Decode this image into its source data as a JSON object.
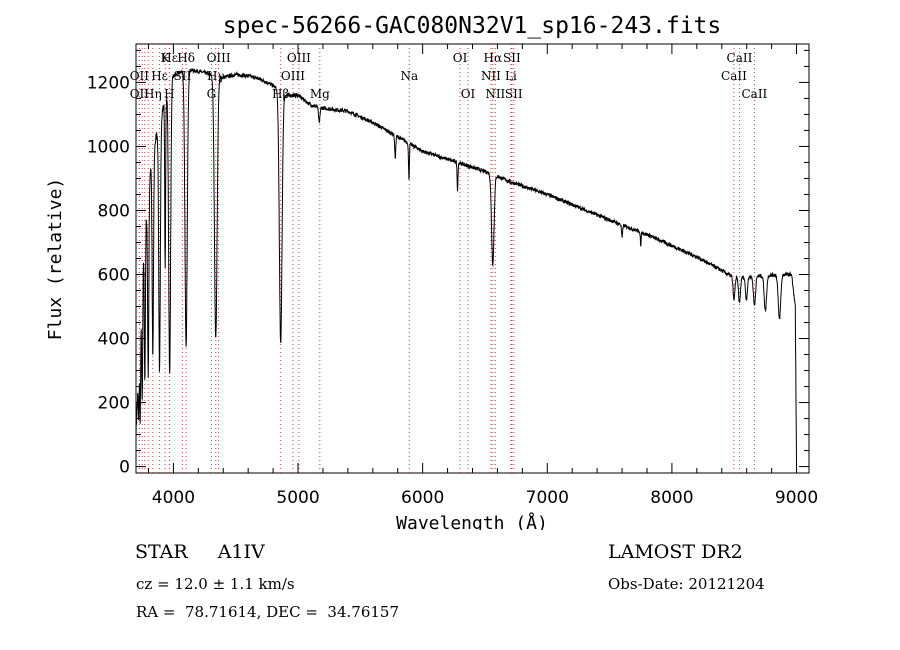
{
  "chart_data": {
    "type": "line",
    "title": "spec-56266-GAC080N32V1_sp16-243.fits",
    "xlabel": "Wavelength (Å)",
    "ylabel": "Flux (relative)",
    "xlim": [
      3700,
      9100
    ],
    "ylim": [
      -20,
      1320
    ],
    "grid": false,
    "x_ticks": [
      4000,
      5000,
      6000,
      7000,
      8000,
      9000
    ],
    "y_ticks": [
      0,
      200,
      400,
      600,
      800,
      1000,
      1200
    ],
    "continuum": [
      [
        3700,
        100
      ],
      [
        3760,
        680
      ],
      [
        3820,
        950
      ],
      [
        3900,
        1100
      ],
      [
        4000,
        1220
      ],
      [
        4100,
        1240
      ],
      [
        4200,
        1235
      ],
      [
        4300,
        1225
      ],
      [
        4400,
        1215
      ],
      [
        4500,
        1225
      ],
      [
        4600,
        1220
      ],
      [
        4700,
        1210
      ],
      [
        4800,
        1190
      ],
      [
        4900,
        1160
      ],
      [
        5000,
        1160
      ],
      [
        5100,
        1130
      ],
      [
        5200,
        1120
      ],
      [
        5400,
        1110
      ],
      [
        5600,
        1075
      ],
      [
        5800,
        1030
      ],
      [
        6000,
        985
      ],
      [
        6200,
        960
      ],
      [
        6400,
        935
      ],
      [
        6550,
        915
      ],
      [
        6700,
        890
      ],
      [
        7000,
        850
      ],
      [
        7500,
        770
      ],
      [
        7800,
        725
      ],
      [
        8000,
        690
      ],
      [
        8200,
        655
      ],
      [
        8400,
        612
      ],
      [
        8500,
        590
      ],
      [
        8700,
        595
      ],
      [
        8850,
        600
      ],
      [
        8960,
        600
      ],
      [
        8990,
        500
      ],
      [
        9000,
        0
      ]
    ],
    "absorption_features": [
      {
        "x": 3722,
        "depth": 170,
        "width": 5
      },
      {
        "x": 3734,
        "depth": 280,
        "width": 5
      },
      {
        "x": 3750,
        "depth": 380,
        "width": 6
      },
      {
        "x": 3771,
        "depth": 460,
        "width": 6
      },
      {
        "x": 3798,
        "depth": 560,
        "width": 7
      },
      {
        "x": 3835,
        "depth": 640,
        "width": 8
      },
      {
        "x": 3889,
        "depth": 780,
        "width": 9
      },
      {
        "x": 3934,
        "depth": 520,
        "width": 5
      },
      {
        "x": 3970,
        "depth": 900,
        "width": 11
      },
      {
        "x": 4102,
        "depth": 870,
        "width": 13
      },
      {
        "x": 4340,
        "depth": 820,
        "width": 15
      },
      {
        "x": 4861,
        "depth": 790,
        "width": 15
      },
      {
        "x": 5170,
        "depth": 50,
        "width": 8
      },
      {
        "x": 5780,
        "depth": 70,
        "width": 6
      },
      {
        "x": 5890,
        "depth": 110,
        "width": 5
      },
      {
        "x": 6280,
        "depth": 85,
        "width": 5
      },
      {
        "x": 6563,
        "depth": 280,
        "width": 14
      },
      {
        "x": 7600,
        "depth": 40,
        "width": 6
      },
      {
        "x": 7750,
        "depth": 50,
        "width": 4
      },
      {
        "x": 8498,
        "depth": 70,
        "width": 10
      },
      {
        "x": 8542,
        "depth": 80,
        "width": 11
      },
      {
        "x": 8598,
        "depth": 70,
        "width": 11
      },
      {
        "x": 8662,
        "depth": 90,
        "width": 12
      },
      {
        "x": 8750,
        "depth": 110,
        "width": 13
      },
      {
        "x": 8863,
        "depth": 140,
        "width": 14
      }
    ],
    "line_markers": [
      {
        "label": "Hε",
        "x": 3970,
        "row": 0
      },
      {
        "label": "K",
        "x": 3934,
        "row": 0
      },
      {
        "label": "Hδ",
        "x": 4102,
        "row": 0
      },
      {
        "label": "OIII",
        "x": 4363,
        "row": 0
      },
      {
        "label": "OIII",
        "x": 5007,
        "row": 0
      },
      {
        "label": "OI",
        "x": 6300,
        "row": 0
      },
      {
        "label": "Hα",
        "x": 6563,
        "row": 0
      },
      {
        "label": "SII",
        "x": 6716,
        "row": 0
      },
      {
        "label": "CaII",
        "x": 8542,
        "row": 0
      },
      {
        "label": "OII",
        "x": 3727,
        "row": 1
      },
      {
        "label": "Hε",
        "x": 3889,
        "row": 1
      },
      {
        "label": "SII",
        "x": 4072,
        "row": 1
      },
      {
        "label": "Hγ",
        "x": 4340,
        "row": 1
      },
      {
        "label": "OIII",
        "x": 4959,
        "row": 1
      },
      {
        "label": "Na",
        "x": 5893,
        "row": 1
      },
      {
        "label": "NII",
        "x": 6548,
        "row": 1
      },
      {
        "label": "Li",
        "x": 6708,
        "row": 1
      },
      {
        "label": "CaII",
        "x": 8498,
        "row": 1
      },
      {
        "label": "OII",
        "x": 3727,
        "row": 2
      },
      {
        "label": "Hη",
        "x": 3835,
        "row": 2
      },
      {
        "label": "H",
        "x": 3968,
        "row": 2
      },
      {
        "label": "G",
        "x": 4305,
        "row": 2
      },
      {
        "label": "Hβ",
        "x": 4861,
        "row": 2
      },
      {
        "label": "Mg",
        "x": 5175,
        "row": 2
      },
      {
        "label": "OI",
        "x": 6364,
        "row": 2
      },
      {
        "label": "NII",
        "x": 6583,
        "row": 2
      },
      {
        "label": "SII",
        "x": 6731,
        "row": 2
      },
      {
        "label": "CaII",
        "x": 8662,
        "row": 2
      }
    ],
    "marker_lines_x": [
      3727,
      3750,
      3771,
      3798,
      3835,
      3889,
      3934,
      3968,
      3970,
      4072,
      4102,
      4305,
      4340,
      4363,
      4861,
      4959,
      5007,
      5175,
      5893,
      6300,
      6364,
      6548,
      6563,
      6583,
      6708,
      6716,
      6731,
      8498,
      8542,
      8662
    ]
  },
  "info": {
    "star_label": "STAR",
    "star_type": "A1IV",
    "survey": "LAMOST DR2",
    "cz": "cz = 12.0 ± 1.1 km/s",
    "obs_date": "Obs-Date: 20121204",
    "radec": "RA =  78.71614, DEC =  34.76157"
  }
}
